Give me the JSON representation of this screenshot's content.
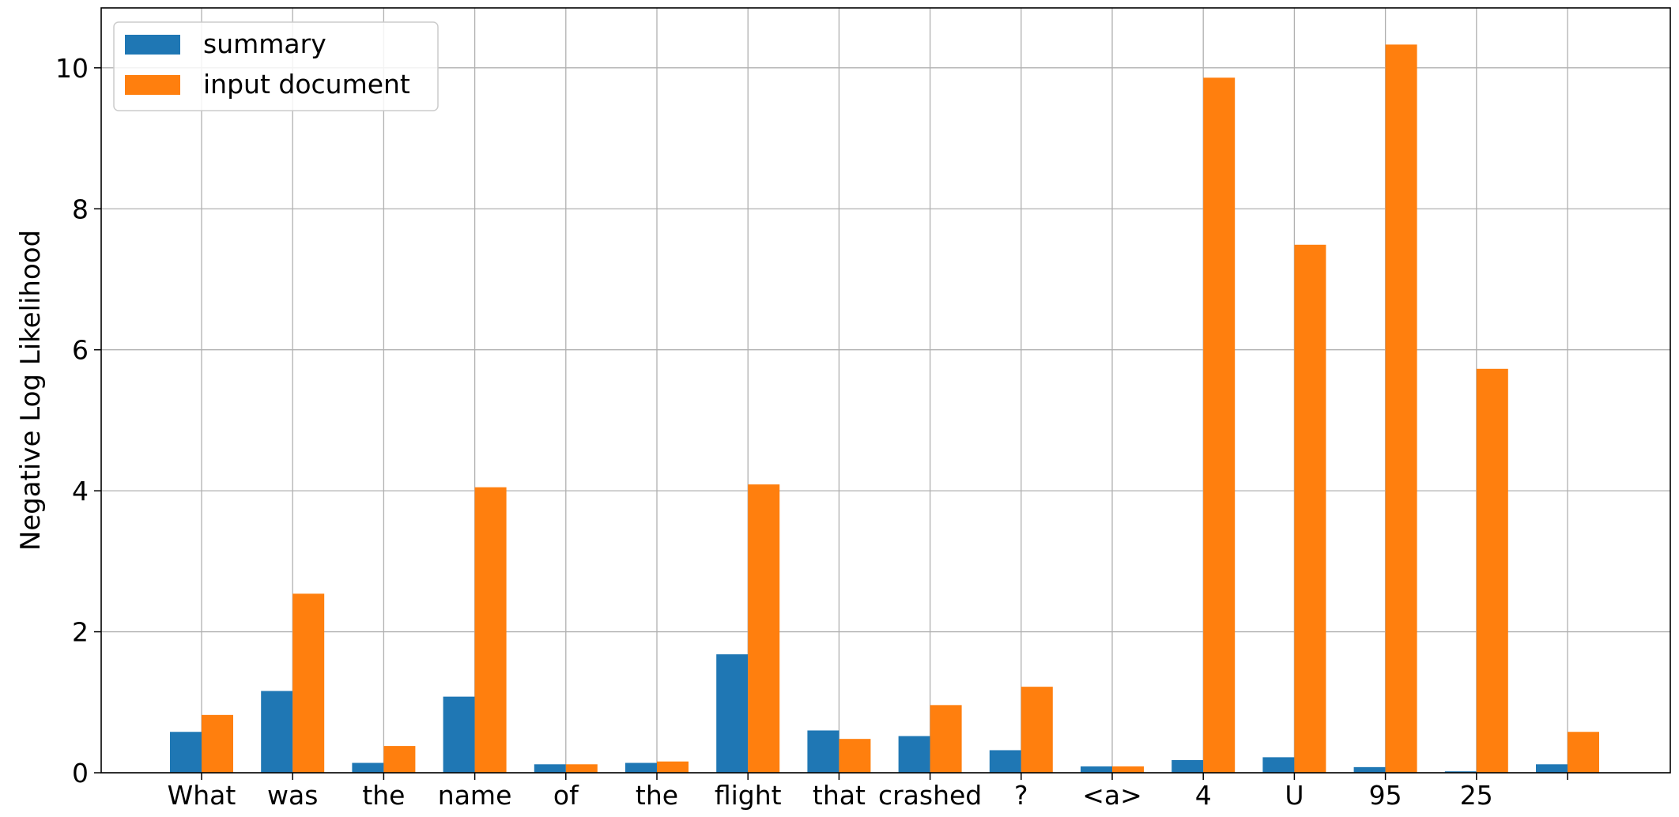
{
  "chart_data": {
    "type": "bar",
    "title": "",
    "xlabel": "",
    "ylabel": "Negative Log Likelihood",
    "ylim": [
      0,
      10.85
    ],
    "yticks": [
      0,
      2,
      4,
      6,
      8,
      10
    ],
    "grid": true,
    "legend_position": "top-left",
    "categories": [
      "What",
      "was",
      "the",
      "name",
      "of",
      "the",
      "flight",
      "that",
      "crashed",
      "?",
      "<a>",
      "4",
      "U",
      "95",
      "25",
      ""
    ],
    "series": [
      {
        "name": "summary",
        "color": "#1f77b4",
        "values": [
          0.58,
          1.16,
          0.14,
          1.08,
          0.12,
          0.14,
          1.68,
          0.6,
          0.52,
          0.32,
          0.09,
          0.18,
          0.22,
          0.08,
          0.02,
          0.12
        ]
      },
      {
        "name": "input document",
        "color": "#ff7f0e",
        "values": [
          0.82,
          2.54,
          0.38,
          4.05,
          0.12,
          0.16,
          4.09,
          0.48,
          0.96,
          1.22,
          0.09,
          9.86,
          7.49,
          10.33,
          5.73,
          0.58
        ]
      }
    ]
  }
}
